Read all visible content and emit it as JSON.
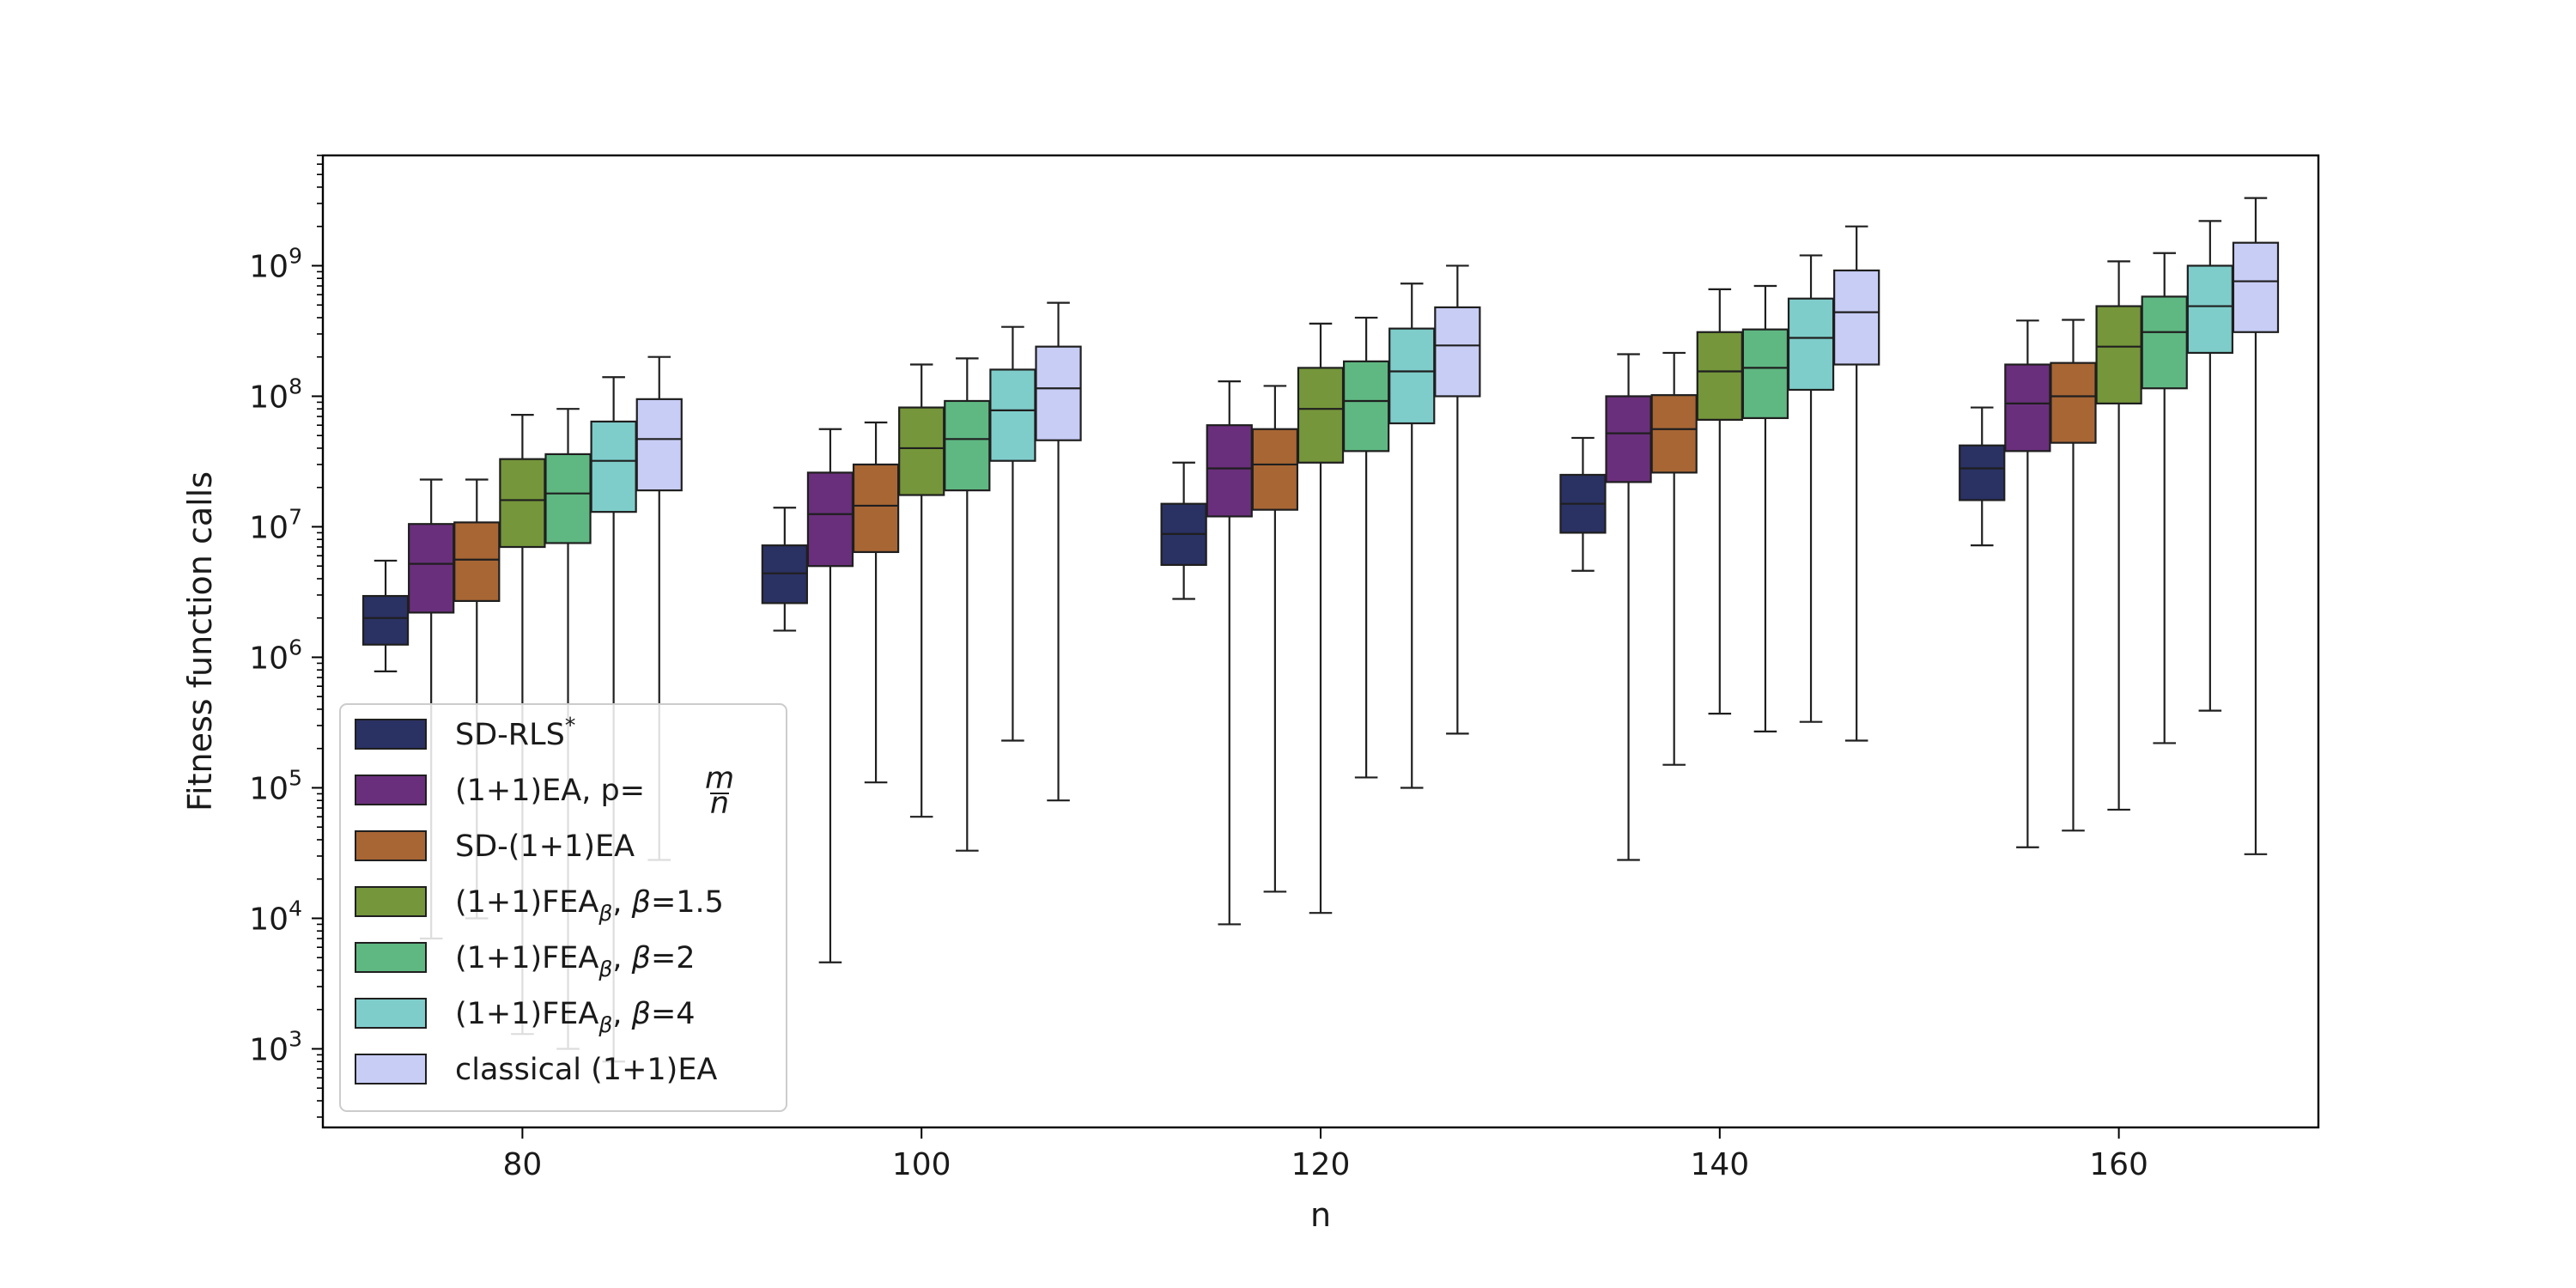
{
  "chart_data": {
    "type": "boxplot",
    "xlabel": "n",
    "ylabel": "Fitness function calls",
    "yscale": "log",
    "ylim": [
      250,
      7000000000
    ],
    "categories": [
      "80",
      "100",
      "120",
      "140",
      "160"
    ],
    "yticks": [
      {
        "base": "10",
        "exp": "3",
        "value": 1000
      },
      {
        "base": "10",
        "exp": "4",
        "value": 10000
      },
      {
        "base": "10",
        "exp": "5",
        "value": 100000
      },
      {
        "base": "10",
        "exp": "6",
        "value": 1000000
      },
      {
        "base": "10",
        "exp": "7",
        "value": 10000000
      },
      {
        "base": "10",
        "exp": "8",
        "value": 100000000
      },
      {
        "base": "10",
        "exp": "9",
        "value": 1000000000
      }
    ],
    "legend_position": "lower-left",
    "series": [
      {
        "name": "SD-RLS*",
        "legend": {
          "pre": "SD-RLS",
          "sup": "*"
        },
        "color": "#2a3163",
        "boxes": [
          {
            "whislo": 780000,
            "q1": 1250000,
            "med": 2000000,
            "q3": 2950000,
            "whishi": 5500000
          },
          {
            "whislo": 1600000,
            "q1": 2600000,
            "med": 4400000,
            "q3": 7200000,
            "whishi": 14000000
          },
          {
            "whislo": 2800000,
            "q1": 5100000,
            "med": 8800000,
            "q3": 15000000,
            "whishi": 31000000
          },
          {
            "whislo": 4600000,
            "q1": 9000000,
            "med": 15000000,
            "q3": 25000000,
            "whishi": 48000000
          },
          {
            "whislo": 7200000,
            "q1": 16000000,
            "med": 28000000,
            "q3": 42000000,
            "whishi": 82000000
          }
        ]
      },
      {
        "name": "(1+1)EA, p=m/n",
        "legend": {
          "pre": "(1+1)EA, p=",
          "frac_num": "m",
          "frac_den": "n"
        },
        "color": "#6a2f7c",
        "boxes": [
          {
            "whislo": 7000,
            "q1": 2200000,
            "med": 5200000,
            "q3": 10500000,
            "whishi": 23000000
          },
          {
            "whislo": 4600,
            "q1": 5000000,
            "med": 12500000,
            "q3": 26000000,
            "whishi": 56000000
          },
          {
            "whislo": 9000,
            "q1": 12000000,
            "med": 28000000,
            "q3": 60000000,
            "whishi": 130000000
          },
          {
            "whislo": 28000,
            "q1": 22000000,
            "med": 52000000,
            "q3": 100000000,
            "whishi": 210000000
          },
          {
            "whislo": 35000,
            "q1": 38000000,
            "med": 88000000,
            "q3": 175000000,
            "whishi": 380000000
          }
        ]
      },
      {
        "name": "SD-(1+1)EA",
        "legend": {
          "pre": "SD-(1+1)EA"
        },
        "color": "#a86634",
        "boxes": [
          {
            "whislo": 10000,
            "q1": 2700000,
            "med": 5600000,
            "q3": 10800000,
            "whishi": 23000000
          },
          {
            "whislo": 110000,
            "q1": 6400000,
            "med": 14500000,
            "q3": 30000000,
            "whishi": 63000000
          },
          {
            "whislo": 16000,
            "q1": 13500000,
            "med": 30000000,
            "q3": 56000000,
            "whishi": 120000000
          },
          {
            "whislo": 150000,
            "q1": 26000000,
            "med": 56000000,
            "q3": 102000000,
            "whishi": 215000000
          },
          {
            "whislo": 47000,
            "q1": 44000000,
            "med": 100000000,
            "q3": 180000000,
            "whishi": 385000000
          }
        ]
      },
      {
        "name": "(1+1)FEAβ, β=1.5",
        "legend": {
          "pre": "(1+1)FEA",
          "sub": "β",
          "post_italic": "β",
          "post": "=1.5"
        },
        "color": "#75963a",
        "boxes": [
          {
            "whislo": 1300,
            "q1": 7000000,
            "med": 16000000,
            "q3": 33000000,
            "whishi": 72000000
          },
          {
            "whislo": 60000,
            "q1": 17500000,
            "med": 40000000,
            "q3": 82000000,
            "whishi": 175000000
          },
          {
            "whislo": 11000,
            "q1": 31000000,
            "med": 80000000,
            "q3": 165000000,
            "whishi": 360000000
          },
          {
            "whislo": 370000,
            "q1": 66000000,
            "med": 155000000,
            "q3": 310000000,
            "whishi": 660000000
          },
          {
            "whislo": 68000,
            "q1": 88000000,
            "med": 240000000,
            "q3": 490000000,
            "whishi": 1080000000
          }
        ]
      },
      {
        "name": "(1+1)FEAβ, β=2",
        "legend": {
          "pre": "(1+1)FEA",
          "sub": "β",
          "post_italic": "β",
          "post": "=2"
        },
        "color": "#5fb882",
        "boxes": [
          {
            "whislo": 1000,
            "q1": 7500000,
            "med": 18000000,
            "q3": 36000000,
            "whishi": 80000000
          },
          {
            "whislo": 33000,
            "q1": 19000000,
            "med": 47000000,
            "q3": 92000000,
            "whishi": 195000000
          },
          {
            "whislo": 120000,
            "q1": 38000000,
            "med": 92000000,
            "q3": 185000000,
            "whishi": 400000000
          },
          {
            "whislo": 270000,
            "q1": 68000000,
            "med": 165000000,
            "q3": 325000000,
            "whishi": 700000000
          },
          {
            "whislo": 220000,
            "q1": 115000000,
            "med": 310000000,
            "q3": 580000000,
            "whishi": 1250000000
          }
        ]
      },
      {
        "name": "(1+1)FEAβ, β=4",
        "legend": {
          "pre": "(1+1)FEA",
          "sub": "β",
          "post_italic": "β",
          "post": "=4"
        },
        "color": "#7ecdcb",
        "boxes": [
          {
            "whislo": 800,
            "q1": 13000000,
            "med": 32000000,
            "q3": 64000000,
            "whishi": 140000000
          },
          {
            "whislo": 230000,
            "q1": 32000000,
            "med": 78000000,
            "q3": 160000000,
            "whishi": 340000000
          },
          {
            "whislo": 100000,
            "q1": 62000000,
            "med": 155000000,
            "q3": 330000000,
            "whishi": 730000000
          },
          {
            "whislo": 320000,
            "q1": 112000000,
            "med": 280000000,
            "q3": 560000000,
            "whishi": 1200000000
          },
          {
            "whislo": 390000,
            "q1": 215000000,
            "med": 490000000,
            "q3": 1000000000,
            "whishi": 2200000000
          }
        ]
      },
      {
        "name": "classical (1+1)EA",
        "legend": {
          "pre": "classical (1+1)EA"
        },
        "color": "#c8cdf6",
        "boxes": [
          {
            "whislo": 28000,
            "q1": 19000000,
            "med": 47000000,
            "q3": 95000000,
            "whishi": 200000000
          },
          {
            "whislo": 80000,
            "q1": 46000000,
            "med": 115000000,
            "q3": 240000000,
            "whishi": 520000000
          },
          {
            "whislo": 260000,
            "q1": 100000000,
            "med": 245000000,
            "q3": 480000000,
            "whishi": 1000000000
          },
          {
            "whislo": 230000,
            "q1": 175000000,
            "med": 440000000,
            "q3": 920000000,
            "whishi": 2000000000
          },
          {
            "whislo": 31000,
            "q1": 310000000,
            "med": 760000000,
            "q3": 1500000000,
            "whishi": 3300000000
          }
        ]
      }
    ]
  }
}
